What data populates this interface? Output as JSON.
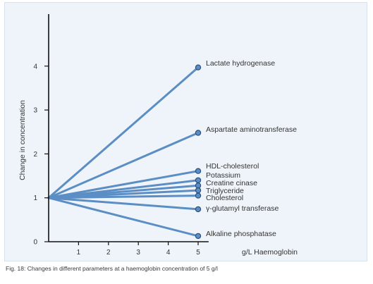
{
  "chart_data": {
    "type": "line",
    "title": "",
    "xlabel": "g/L Haemoglobin",
    "ylabel": "Change in concentration",
    "x_ticks": [
      1,
      2,
      3,
      4,
      5
    ],
    "y_ticks": [
      0,
      1,
      2,
      3,
      4
    ],
    "xlim": [
      0,
      5
    ],
    "ylim": [
      0,
      4
    ],
    "grid": false,
    "origin": {
      "x": 0,
      "y": 1
    },
    "series": [
      {
        "name": "Lactate hydrogenase",
        "x": [
          0,
          5
        ],
        "y": [
          1,
          3.97
        ]
      },
      {
        "name": "Aspartate aminotransferase",
        "x": [
          0,
          5
        ],
        "y": [
          1,
          2.48
        ]
      },
      {
        "name": "HDL-cholesterol",
        "x": [
          0,
          5
        ],
        "y": [
          1,
          1.61
        ]
      },
      {
        "name": "Potassium",
        "x": [
          0,
          5
        ],
        "y": [
          1,
          1.4
        ]
      },
      {
        "name": "Creatine cinase",
        "x": [
          0,
          5
        ],
        "y": [
          1,
          1.28
        ]
      },
      {
        "name": "Triglyceride",
        "x": [
          0,
          5
        ],
        "y": [
          1,
          1.17
        ]
      },
      {
        "name": "Cholesterol",
        "x": [
          0,
          5
        ],
        "y": [
          1,
          1.05
        ]
      },
      {
        "name": "γ-glutamyl transferase",
        "x": [
          0,
          5
        ],
        "y": [
          1,
          0.74
        ]
      },
      {
        "name": "Alkaline phosphatase",
        "x": [
          0,
          5
        ],
        "y": [
          1,
          0.13
        ]
      }
    ],
    "colors": {
      "line": "#5b8ec4",
      "marker_fill": "#5b8ec4",
      "marker_stroke": "#2d4f7a",
      "axis": "#111111",
      "text": "#333333"
    }
  },
  "caption": "Fig. 18: Changes in different parameters at a haemoglobin concentration of 5 g/l"
}
